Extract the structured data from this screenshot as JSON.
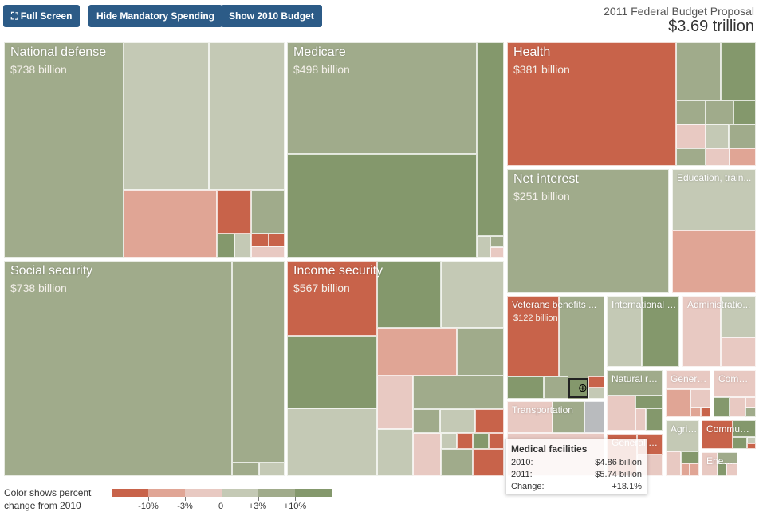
{
  "toolbar": {
    "full_screen": "Full Screen",
    "hide_mandatory": "Hide Mandatory Spending",
    "show_2010": "Show 2010 Budget"
  },
  "header": {
    "title": "2011 Federal Budget Proposal",
    "total": "$3.69 trillion"
  },
  "colors": {
    "dark_red": "#c8634a",
    "salmon": "#e0a595",
    "pink": "#e8c9c2",
    "light": "#c4c9b5",
    "mid": "#a0ab8b",
    "green": "#84986c",
    "gray": "#b9bbbe"
  },
  "categories": [
    {
      "label": "National defense",
      "amount": "$738 billion"
    },
    {
      "label": "Social security",
      "amount": "$738 billion"
    },
    {
      "label": "Medicare",
      "amount": "$498 billion"
    },
    {
      "label": "Income security",
      "amount": "$567 billion"
    },
    {
      "label": "Health",
      "amount": "$381 billion"
    },
    {
      "label": "Net interest",
      "amount": "$251 billion"
    },
    {
      "label": "Education, train..."
    },
    {
      "label": "Veterans benefits ...",
      "amount": "$122 billion"
    },
    {
      "label": "International a..."
    },
    {
      "label": "Administratio..."
    },
    {
      "label": "Transportation"
    },
    {
      "label": "Natural res..."
    },
    {
      "label": "General ..."
    },
    {
      "label": "Comme..."
    },
    {
      "label": "General sc..."
    },
    {
      "label": "Agric..."
    },
    {
      "label": "Community ..."
    },
    {
      "label": "Energy"
    }
  ],
  "tooltip": {
    "title": "Medical facilities",
    "rows": [
      {
        "k": "2010:",
        "v": "$4.86 billion"
      },
      {
        "k": "2011:",
        "v": "$5.74 billion"
      },
      {
        "k": "Change:",
        "v": "+18.1%"
      }
    ]
  },
  "legend": {
    "text": "Color shows percent change from 2010",
    "ticks": [
      "-10%",
      "-3%",
      "0",
      "+3%",
      "+10%"
    ]
  }
}
